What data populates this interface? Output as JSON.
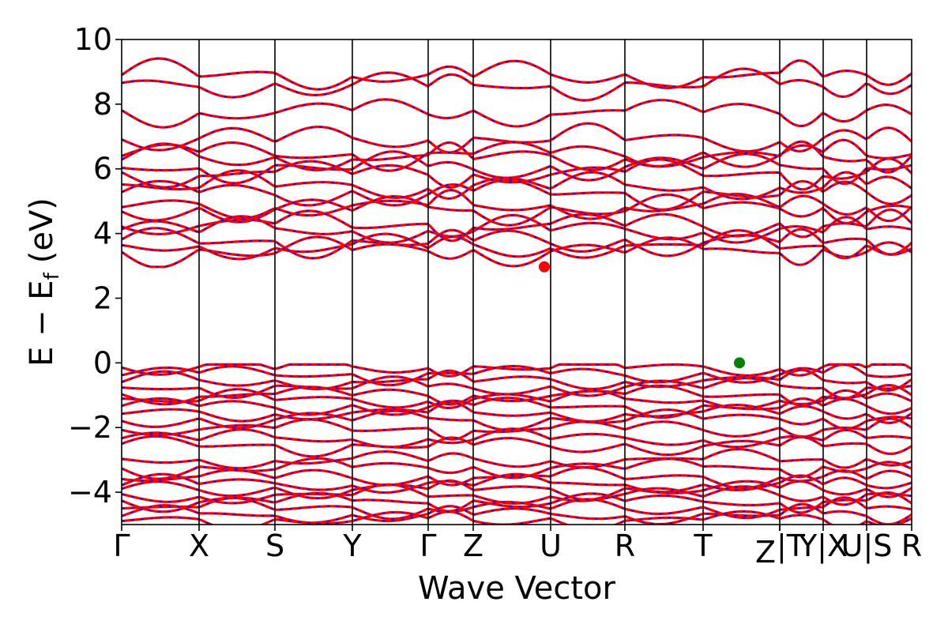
{
  "chart_data": {
    "type": "line",
    "title": "",
    "xlabel": "Wave Vector",
    "ylabel": "E − E",
    "ylabel_sub": "f",
    "ylabel_unit": "(eV)",
    "ylim": [
      -5,
      10
    ],
    "yticks": [
      -4,
      -2,
      0,
      2,
      4,
      6,
      8,
      10
    ],
    "ytick_labels": [
      "−4",
      "−2",
      "0",
      "2",
      "4",
      "6",
      "8",
      "10"
    ],
    "x_range": [
      0,
      1
    ],
    "grid": false,
    "legend": "none",
    "colors": {
      "band_primary": "#ff0000",
      "band_dash": "#0000ff",
      "cbm_marker": "#ff0000",
      "vbm_marker": "#008000"
    },
    "kpoints": [
      {
        "label": "Γ",
        "x": 0.0
      },
      {
        "label": "X",
        "x": 0.098
      },
      {
        "label": "S",
        "x": 0.194
      },
      {
        "label": "Y",
        "x": 0.292
      },
      {
        "label": "Γ",
        "x": 0.388
      },
      {
        "label": "Z",
        "x": 0.445
      },
      {
        "label": "U",
        "x": 0.543
      },
      {
        "label": "R",
        "x": 0.637
      },
      {
        "label": "T",
        "x": 0.736
      },
      {
        "label": "Z",
        "x": 0.833
      },
      {
        "label": "|T",
        "x": 0.833
      },
      {
        "label": "Y|X",
        "x": 0.888
      },
      {
        "label": "U|S",
        "x": 0.943
      },
      {
        "label": "R",
        "x": 1.0
      }
    ],
    "markers": [
      {
        "name": "CBM",
        "x": 0.535,
        "y": 2.97,
        "color": "#ff0000"
      },
      {
        "name": "VBM",
        "x": 0.782,
        "y": 0.0,
        "color": "#008000"
      }
    ],
    "conduction_bands_at_start": [
      8.9,
      8.6,
      7.75,
      6.9,
      6.45,
      6.35,
      6.05,
      5.85,
      5.45,
      5.25,
      4.85,
      4.75,
      4.25,
      4.1,
      3.75,
      3.6,
      3.45
    ],
    "valence_bands_at_start": [
      -0.15,
      -0.35,
      -0.55,
      -0.75,
      -1.0,
      -1.15,
      -1.35,
      -1.55,
      -1.75,
      -2.05,
      -2.35,
      -2.55,
      -3.0,
      -3.25,
      -3.55,
      -3.75,
      -3.9,
      -4.1,
      -4.3,
      -4.5,
      -4.7,
      -4.85
    ]
  }
}
